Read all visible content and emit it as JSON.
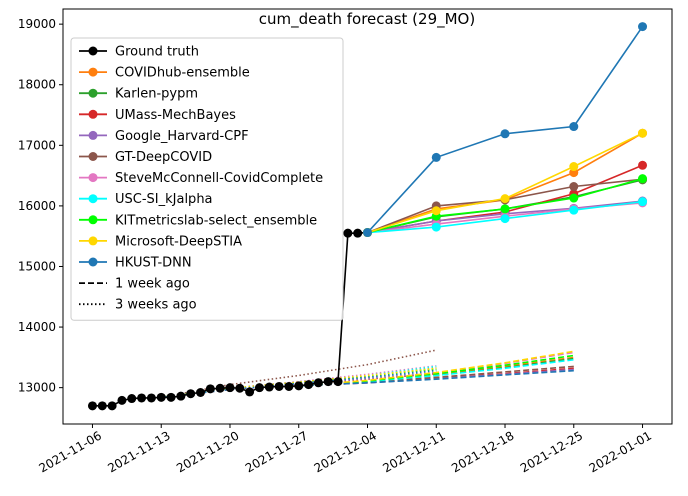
{
  "chart_data": {
    "type": "line",
    "title": "cum_death forecast (29_MO)",
    "xlabel": "",
    "ylabel": "",
    "x_ticks": [
      "2021-11-06",
      "2021-11-13",
      "2021-11-20",
      "2021-11-27",
      "2021-12-04",
      "2021-12-11",
      "2021-12-18",
      "2021-12-25",
      "2022-01-01"
    ],
    "y_ticks": [
      13000,
      14000,
      15000,
      16000,
      17000,
      18000,
      19000
    ],
    "xlim": [
      "2021-11-03",
      "2022-01-04"
    ],
    "ylim": [
      12400,
      19250
    ],
    "legend_position": "top-left",
    "grid": false,
    "ground_truth": {
      "name": "Ground truth",
      "color": "#000000",
      "points": [
        [
          "2021-11-06",
          12700
        ],
        [
          "2021-11-07",
          12700
        ],
        [
          "2021-11-08",
          12700
        ],
        [
          "2021-11-09",
          12790
        ],
        [
          "2021-11-10",
          12820
        ],
        [
          "2021-11-11",
          12830
        ],
        [
          "2021-11-12",
          12830
        ],
        [
          "2021-11-13",
          12840
        ],
        [
          "2021-11-14",
          12840
        ],
        [
          "2021-11-15",
          12860
        ],
        [
          "2021-11-16",
          12900
        ],
        [
          "2021-11-17",
          12920
        ],
        [
          "2021-11-18",
          12980
        ],
        [
          "2021-11-19",
          12990
        ],
        [
          "2021-11-20",
          13000
        ],
        [
          "2021-11-21",
          12990
        ],
        [
          "2021-11-22",
          12930
        ],
        [
          "2021-11-23",
          13000
        ],
        [
          "2021-11-24",
          13010
        ],
        [
          "2021-11-25",
          13020
        ],
        [
          "2021-11-26",
          13020
        ],
        [
          "2021-11-27",
          13030
        ],
        [
          "2021-11-28",
          13050
        ],
        [
          "2021-11-29",
          13080
        ],
        [
          "2021-11-30",
          13100
        ],
        [
          "2021-12-01",
          13100
        ],
        [
          "2021-12-02",
          15550
        ],
        [
          "2021-12-03",
          15550
        ],
        [
          "2021-12-04",
          15560
        ]
      ]
    },
    "x": [
      "2021-12-04",
      "2021-12-11",
      "2021-12-18",
      "2021-12-25",
      "2022-01-01"
    ],
    "series": [
      {
        "name": "COVIDhub-ensemble",
        "color": "#ff7f0e",
        "values": [
          15560,
          15950,
          16100,
          16550,
          17200
        ]
      },
      {
        "name": "Karlen-pypm",
        "color": "#2ca02c",
        "values": [
          15560,
          15820,
          15950,
          16150,
          16430
        ]
      },
      {
        "name": "UMass-MechBayes",
        "color": "#d62728",
        "values": [
          15560,
          15750,
          15900,
          16200,
          16670
        ]
      },
      {
        "name": "Google_Harvard-CPF",
        "color": "#9467bd",
        "values": [
          15560,
          15750,
          15870,
          15960,
          16080
        ]
      },
      {
        "name": "GT-DeepCOVID",
        "color": "#8c564b",
        "values": [
          15560,
          16000,
          16100,
          16320,
          16440
        ]
      },
      {
        "name": "SteveMcConnell-CovidComplete",
        "color": "#e377c2",
        "values": [
          15560,
          15700,
          15830,
          15950,
          16050
        ]
      },
      {
        "name": "USC-SI_kJalpha",
        "color": "#00ffff",
        "values": [
          15560,
          15650,
          15790,
          15930,
          16070
        ]
      },
      {
        "name": "KITmetricslab-select_ensemble",
        "color": "#00ff00",
        "values": [
          15560,
          15830,
          15950,
          16130,
          16450
        ]
      },
      {
        "name": "Microsoft-DeepSTIA",
        "color": "#ffd700",
        "values": [
          15560,
          15920,
          16120,
          16650,
          17200
        ]
      },
      {
        "name": "HKUST-DNN",
        "color": "#1f77b4",
        "values": [
          15560,
          16800,
          17190,
          17310,
          18960
        ]
      }
    ],
    "one_week_ago": {
      "x": [
        "2021-11-27",
        "2021-12-04",
        "2021-12-11",
        "2021-12-18",
        "2021-12-25"
      ],
      "series": [
        {
          "color": "#ff7f0e",
          "values": [
            13030,
            13110,
            13220,
            13350,
            13500
          ]
        },
        {
          "color": "#2ca02c",
          "values": [
            13030,
            13100,
            13200,
            13330,
            13480
          ]
        },
        {
          "color": "#d62728",
          "values": [
            13030,
            13080,
            13150,
            13230,
            13320
          ]
        },
        {
          "color": "#9467bd",
          "values": [
            13030,
            13080,
            13150,
            13220,
            13300
          ]
        },
        {
          "color": "#8c564b",
          "values": [
            13030,
            13090,
            13170,
            13260,
            13350
          ]
        },
        {
          "color": "#e377c2",
          "values": [
            13030,
            13110,
            13240,
            13400,
            13580
          ]
        },
        {
          "color": "#00ffff",
          "values": [
            13030,
            13100,
            13200,
            13320,
            13460
          ]
        },
        {
          "color": "#00ff00",
          "values": [
            13030,
            13110,
            13230,
            13370,
            13530
          ]
        },
        {
          "color": "#ffd700",
          "values": [
            13030,
            13120,
            13250,
            13410,
            13600
          ]
        },
        {
          "color": "#1f77b4",
          "values": [
            13030,
            13080,
            13140,
            13210,
            13280
          ]
        }
      ]
    },
    "three_weeks_ago": {
      "x": [
        "2021-11-13",
        "2021-11-20",
        "2021-11-27",
        "2021-12-04",
        "2021-12-11"
      ],
      "series": [
        {
          "color": "#ff7f0e",
          "values": [
            12840,
            12990,
            13090,
            13200,
            13330
          ]
        },
        {
          "color": "#2ca02c",
          "values": [
            12840,
            12980,
            13080,
            13180,
            13300
          ]
        },
        {
          "color": "#d62728",
          "values": [
            12840,
            12970,
            13060,
            13140,
            13230
          ]
        },
        {
          "color": "#9467bd",
          "values": [
            12840,
            12970,
            13060,
            13150,
            13250
          ]
        },
        {
          "color": "#8c564b",
          "values": [
            12840,
            13050,
            13200,
            13380,
            13620
          ]
        },
        {
          "color": "#e377c2",
          "values": [
            12840,
            12990,
            13100,
            13220,
            13360
          ]
        },
        {
          "color": "#00ffff",
          "values": [
            12840,
            12980,
            13080,
            13200,
            13350
          ]
        },
        {
          "color": "#00ff00",
          "values": [
            12840,
            12990,
            13090,
            13190,
            13310
          ]
        },
        {
          "color": "#ffd700",
          "values": [
            12840,
            12990,
            13090,
            13200,
            13320
          ]
        },
        {
          "color": "#1f77b4",
          "values": [
            12840,
            12970,
            13070,
            13170,
            13280
          ]
        }
      ]
    },
    "legend": [
      {
        "label": "Ground truth",
        "color": "#000000",
        "style": "solid",
        "marker": true
      },
      {
        "label": "COVIDhub-ensemble",
        "color": "#ff7f0e",
        "style": "solid",
        "marker": true
      },
      {
        "label": "Karlen-pypm",
        "color": "#2ca02c",
        "style": "solid",
        "marker": true
      },
      {
        "label": "UMass-MechBayes",
        "color": "#d62728",
        "style": "solid",
        "marker": true
      },
      {
        "label": "Google_Harvard-CPF",
        "color": "#9467bd",
        "style": "solid",
        "marker": true
      },
      {
        "label": "GT-DeepCOVID",
        "color": "#8c564b",
        "style": "solid",
        "marker": true
      },
      {
        "label": "SteveMcConnell-CovidComplete",
        "color": "#e377c2",
        "style": "solid",
        "marker": true
      },
      {
        "label": "USC-SI_kJalpha",
        "color": "#00ffff",
        "style": "solid",
        "marker": true
      },
      {
        "label": "KITmetricslab-select_ensemble",
        "color": "#00ff00",
        "style": "solid",
        "marker": true
      },
      {
        "label": "Microsoft-DeepSTIA",
        "color": "#ffd700",
        "style": "solid",
        "marker": true
      },
      {
        "label": "HKUST-DNN",
        "color": "#1f77b4",
        "style": "solid",
        "marker": true
      },
      {
        "label": "1 week ago",
        "color": "#000000",
        "style": "dashed",
        "marker": false
      },
      {
        "label": "3 weeks ago",
        "color": "#000000",
        "style": "dotted",
        "marker": false
      }
    ]
  }
}
